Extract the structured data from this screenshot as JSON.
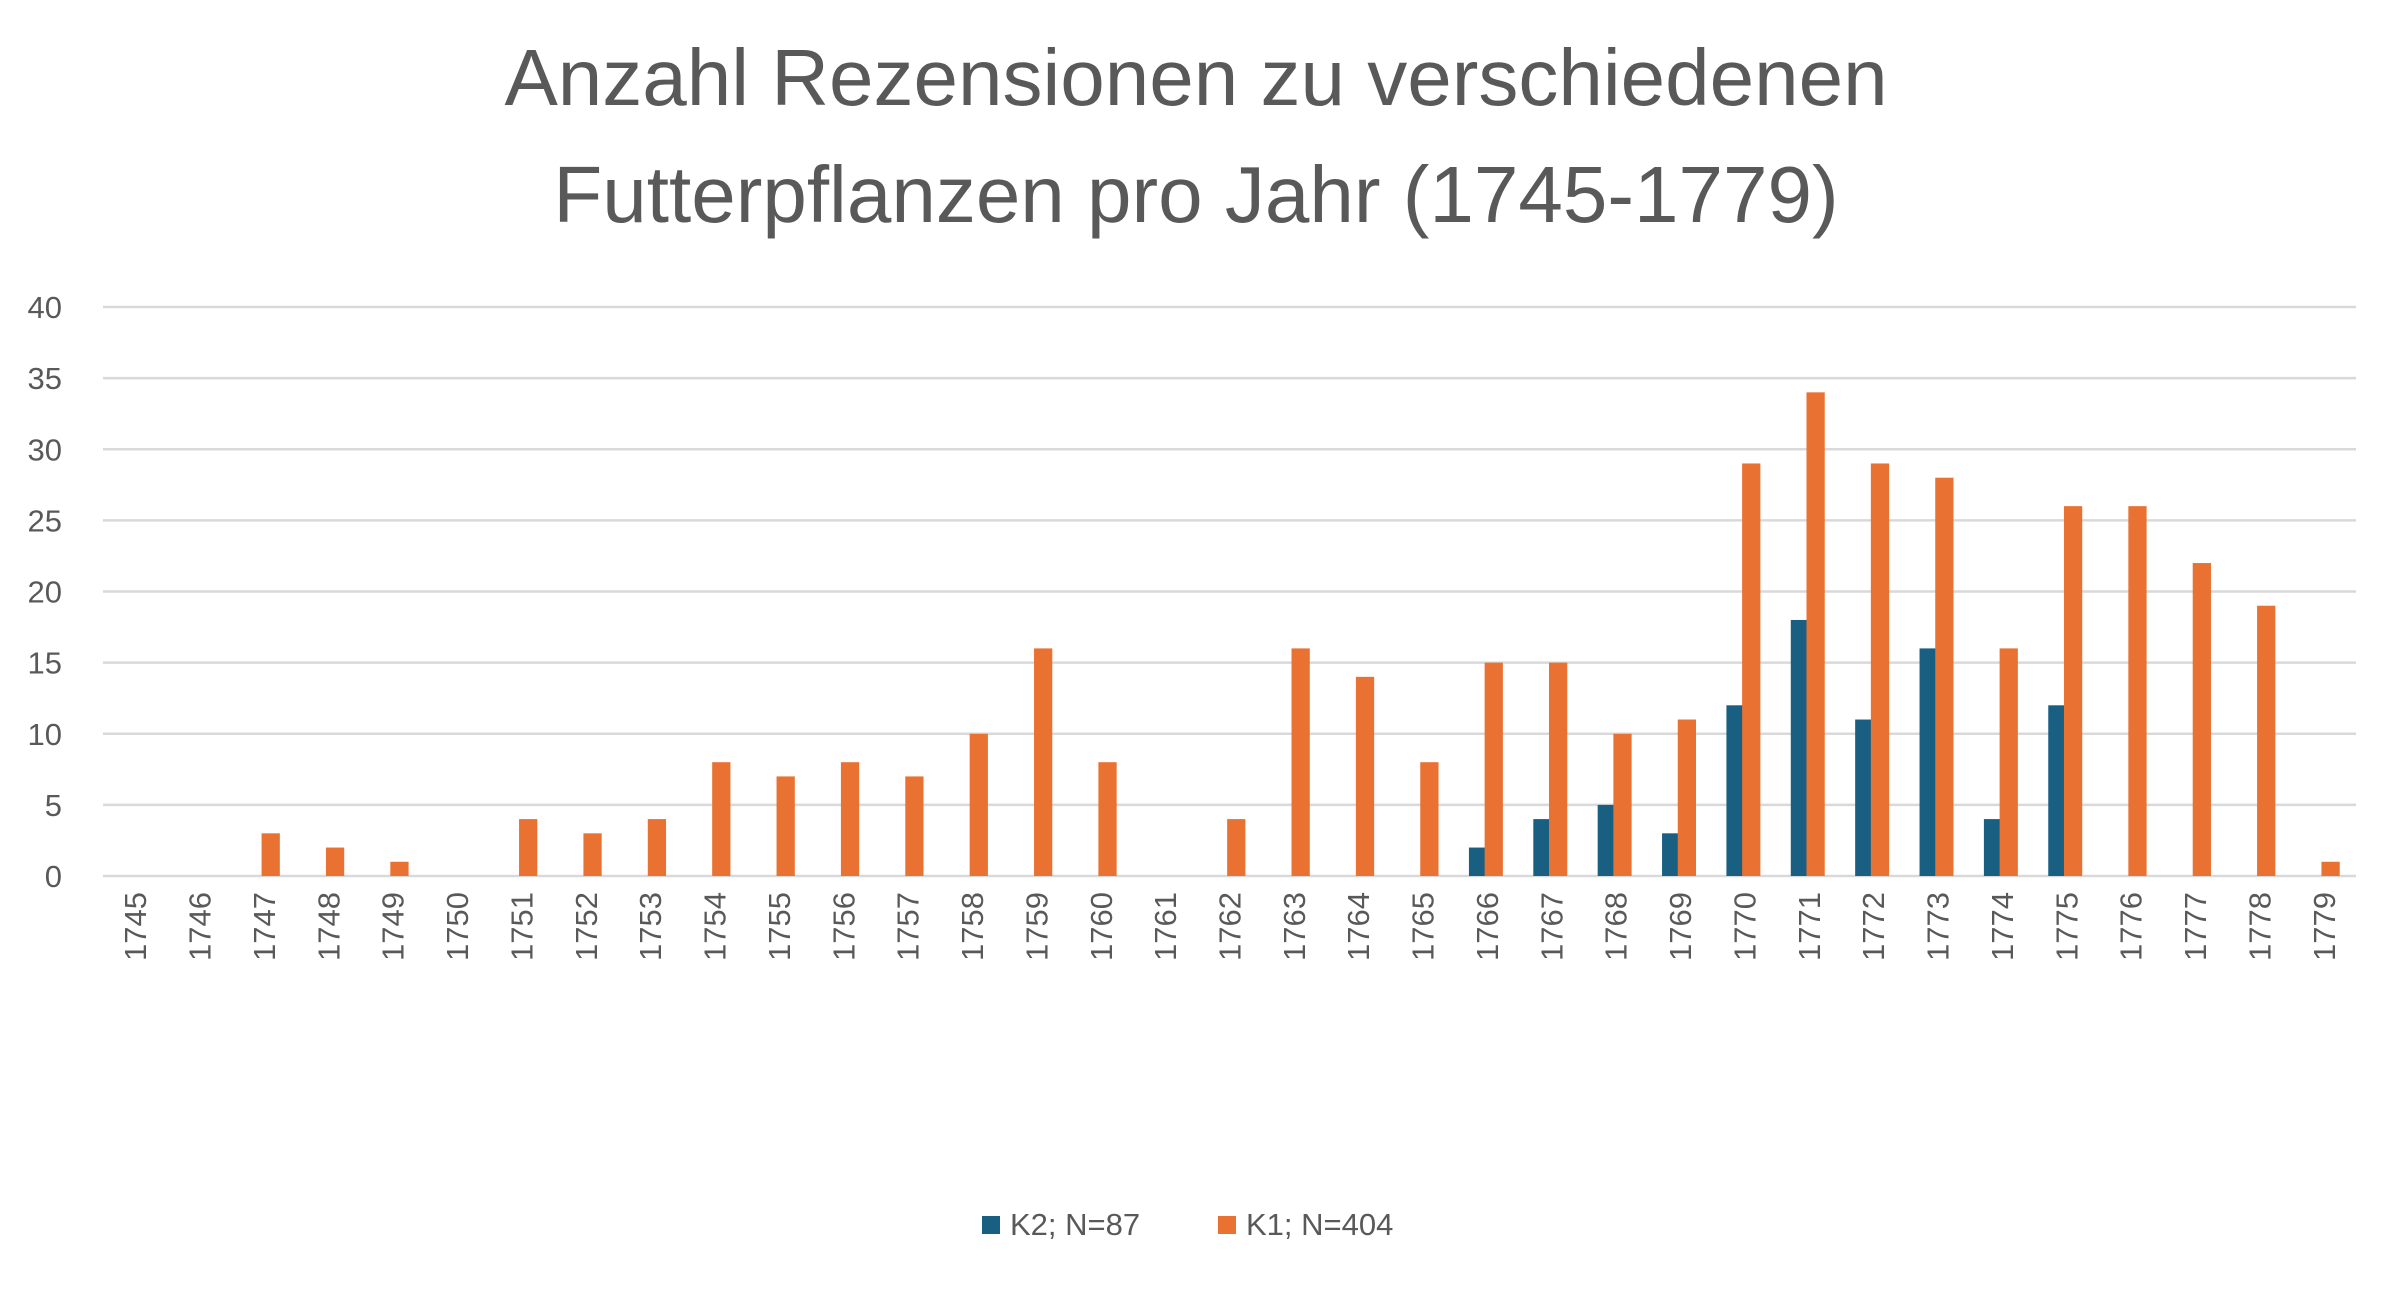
{
  "chart_data": {
    "type": "bar",
    "title": [
      "Anzahl Rezensionen zu verschiedenen",
      "Futterpflanzen pro Jahr (1745-1779)"
    ],
    "xlabel": "",
    "ylabel": "",
    "ylim": [
      0,
      40
    ],
    "yticks": [
      0,
      5,
      10,
      15,
      20,
      25,
      30,
      35,
      40
    ],
    "grid": true,
    "legend_position": "bottom",
    "categories": [
      "1745",
      "1746",
      "1747",
      "1748",
      "1749",
      "1750",
      "1751",
      "1752",
      "1753",
      "1754",
      "1755",
      "1756",
      "1757",
      "1758",
      "1759",
      "1760",
      "1761",
      "1762",
      "1763",
      "1764",
      "1765",
      "1766",
      "1767",
      "1768",
      "1769",
      "1770",
      "1771",
      "1772",
      "1773",
      "1774",
      "1775",
      "1776",
      "1777",
      "1778",
      "1779"
    ],
    "series": [
      {
        "name": "K2; N=87",
        "color": "#185F82",
        "values": [
          0,
          0,
          0,
          0,
          0,
          0,
          0,
          0,
          0,
          0,
          0,
          0,
          0,
          0,
          0,
          0,
          0,
          0,
          0,
          0,
          0,
          2,
          4,
          5,
          3,
          12,
          18,
          11,
          16,
          4,
          12,
          0,
          0,
          0,
          0
        ]
      },
      {
        "name": "K1; N=404",
        "color": "#E97132",
        "values": [
          0,
          0,
          3,
          2,
          1,
          0,
          4,
          3,
          4,
          8,
          7,
          8,
          7,
          10,
          16,
          8,
          0,
          4,
          16,
          14,
          8,
          15,
          15,
          10,
          11,
          29,
          34,
          29,
          28,
          16,
          26,
          26,
          22,
          19,
          1
        ]
      }
    ]
  }
}
